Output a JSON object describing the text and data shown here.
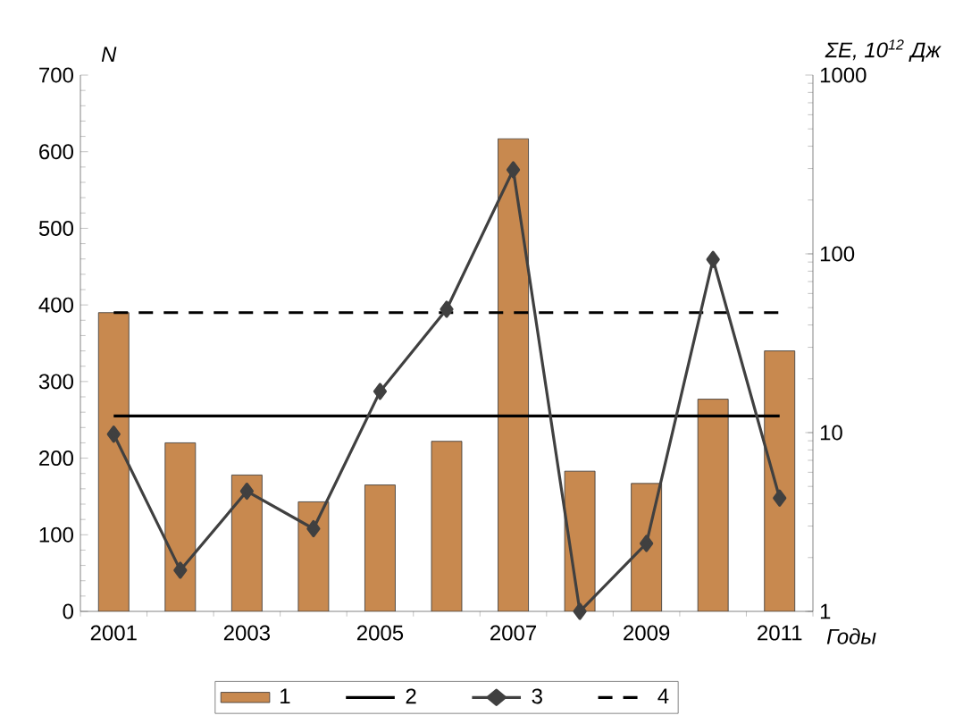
{
  "chart_data": {
    "type": "bar",
    "xlabel": "Годы",
    "ylabel": "N",
    "y2label": "ΣE, 10$^{12}$ Дж",
    "categories": [
      "2001",
      null,
      "2003",
      null,
      "2005",
      null,
      "2007",
      null,
      "2009",
      null,
      "2011"
    ],
    "series": [
      {
        "name": "1",
        "color": "#c8894f",
        "values": [
          390,
          220,
          178,
          143,
          165,
          222,
          617,
          183,
          167,
          277,
          340
        ]
      },
      {
        "name": "2",
        "type": "line",
        "color": "#000000",
        "line_style": "solid",
        "marker": "none",
        "values": [
          255,
          255,
          255,
          255,
          255,
          255,
          255,
          255,
          255,
          255,
          255
        ]
      },
      {
        "name": "3",
        "type": "line",
        "axis": "y2",
        "color": "#404040",
        "line_style": "solid",
        "marker": "diamond",
        "values": [
          9.8,
          1.7,
          4.7,
          2.9,
          17,
          49,
          295,
          1,
          2.4,
          93,
          4.3
        ]
      },
      {
        "name": "4",
        "type": "line",
        "color": "#000000",
        "line_style": "dashed",
        "marker": "none",
        "values": [
          390,
          390,
          390,
          390,
          390,
          390,
          390,
          390,
          390,
          390,
          390
        ]
      }
    ],
    "ylim": [
      0,
      700
    ],
    "yticks": [
      0,
      100,
      200,
      300,
      400,
      500,
      600,
      700
    ],
    "y2lim": [
      1,
      1000
    ],
    "y2ticks": [
      1,
      10,
      100,
      1000
    ],
    "log": "y2",
    "grid": false,
    "legend": "bottom"
  }
}
